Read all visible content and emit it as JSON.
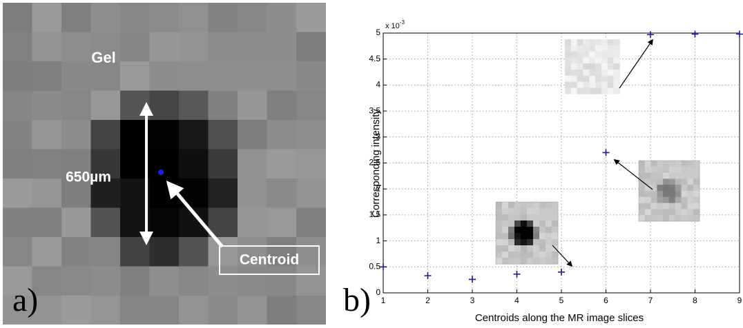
{
  "panel_a": {
    "label": "a)",
    "gel_label": "Gel",
    "size_label": "650µm",
    "centroid_label": "Centroid"
  },
  "chart_data": {
    "type": "scatter",
    "panel_label": "b)",
    "xlabel": "Centroids along the MR image slices",
    "ylabel": "Corresponding intensity",
    "y_scale_base": "x 10",
    "y_scale_exponent": "-3",
    "x": [
      1,
      2,
      3,
      4,
      5,
      6,
      7,
      8,
      9
    ],
    "series": [
      {
        "color": "#1a1a8c",
        "values": [
          0.5,
          0.33,
          0.26,
          0.36,
          0.4,
          2.7,
          4.97,
          4.98,
          4.98
        ]
      }
    ],
    "xlim": [
      1,
      9
    ],
    "xticks": [
      1,
      2,
      3,
      4,
      5,
      6,
      7,
      8,
      9
    ],
    "ylim": [
      0,
      5
    ],
    "yticks": [
      0,
      0.5,
      1,
      1.5,
      2,
      2.5,
      3,
      3.5,
      4,
      4.5,
      5
    ],
    "grid": true
  }
}
